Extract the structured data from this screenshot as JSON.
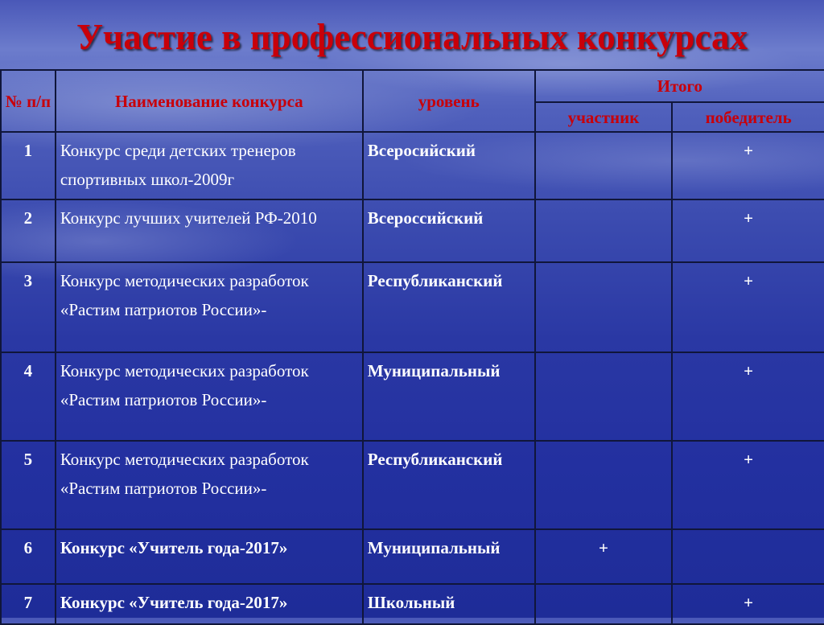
{
  "title": "Участие в профессиональных конкурсах",
  "headers": {
    "num": "№ п/п",
    "name": "Наименование конкурса",
    "level": "уровень",
    "total": "Итого",
    "participant": "участник",
    "winner": "победитель"
  },
  "rows": [
    {
      "num": "1",
      "name": "Конкурс среди детских тренеров спортивных школ-2009г",
      "level": "Всеросийский",
      "participant": "",
      "winner": "+"
    },
    {
      "num": "2",
      "name": "Конкурс лучших учителей РФ-2010",
      "level": "Всероссийский",
      "participant": "",
      "winner": "+"
    },
    {
      "num": "3",
      "name": "Конкурс методических разработок «Растим патриотов России»-",
      "level": "Республиканский",
      "participant": "",
      "winner": "+"
    },
    {
      "num": "4",
      "name": "Конкурс методических разработок «Растим патриотов России»-",
      "level": "Муниципальный",
      "participant": "",
      "winner": "+"
    },
    {
      "num": "5",
      "name": "Конкурс методических разработок «Растим патриотов России»-",
      "level": "Республиканский",
      "participant": "",
      "winner": "+"
    },
    {
      "num": "6",
      "name": "Конкурс «Учитель года-2017»",
      "level": "Муниципальный",
      "participant": "+",
      "winner": ""
    },
    {
      "num": "7",
      "name": "Конкурс «Учитель года-2017»",
      "level": "Школьный",
      "participant": "",
      "winner": "+"
    }
  ],
  "colors": {
    "title": "#c8000a",
    "header_text": "#c8000a",
    "body_text": "#ffffff",
    "background": "#2a38a4"
  }
}
